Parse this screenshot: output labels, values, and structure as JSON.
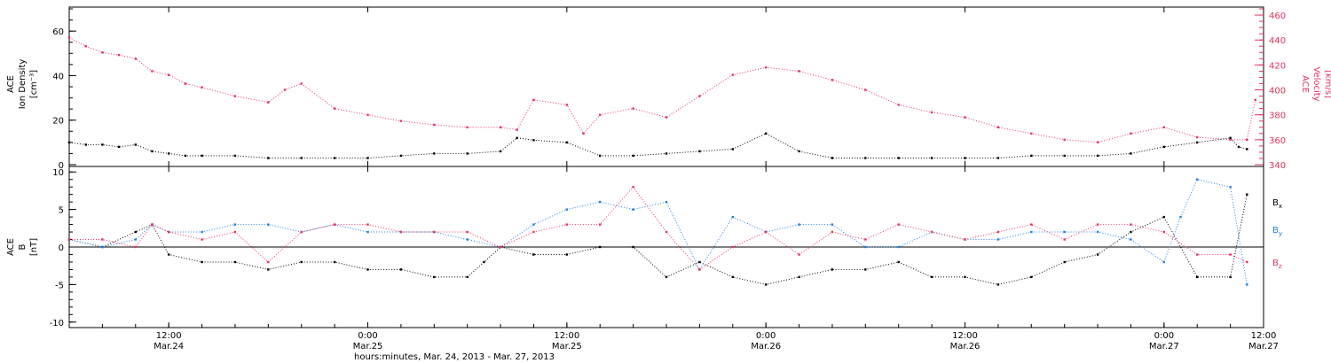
{
  "colors": {
    "black": "#000000",
    "velocity": "#e8315f",
    "by": "#1e7fe0",
    "bz": "#e8315f"
  },
  "x_axis": {
    "range_hours": [
      0,
      72
    ],
    "ticks": [
      {
        "h": 6,
        "label": "12:00",
        "date": "Mar.24"
      },
      {
        "h": 18,
        "label": "0:00",
        "date": "Mar.25"
      },
      {
        "h": 30,
        "label": "12:00",
        "date": "Mar.25"
      },
      {
        "h": 42,
        "label": "0:00",
        "date": "Mar.26"
      },
      {
        "h": 54,
        "label": "12:00",
        "date": "Mar.26"
      },
      {
        "h": 66,
        "label": "0:00",
        "date": "Mar.27"
      },
      {
        "h": 78,
        "label": "12:00",
        "date": "Mar.27"
      }
    ],
    "title": "hours:minutes, Mar. 24, 2013 - Mar. 27, 2013"
  },
  "chart_data": [
    {
      "type": "scatter",
      "panel": "top",
      "ylabel_left": [
        "ACE",
        "Ion Density",
        "[cm⁻³]"
      ],
      "ylabel_right": [
        "ACE",
        "Velocity",
        "[km/s]"
      ],
      "ylim_left": [
        0,
        70
      ],
      "ylim_right": [
        340,
        465
      ],
      "yticks_left": [
        0,
        20,
        40,
        60
      ],
      "yticks_right": [
        340,
        360,
        380,
        400,
        420,
        440,
        460
      ],
      "series": [
        {
          "axis": "left",
          "color": "black",
          "x": [
            0,
            1,
            2,
            3,
            4,
            5,
            6,
            7,
            8,
            10,
            12,
            14,
            16,
            18,
            20,
            22,
            24,
            26,
            27,
            28,
            30,
            32,
            34,
            36,
            38,
            40,
            42,
            44,
            46,
            48,
            50,
            52,
            54,
            56,
            58,
            60,
            62,
            64,
            66,
            68,
            70,
            70.5,
            71
          ],
          "y": [
            10,
            9,
            9,
            8,
            9,
            6,
            5,
            4,
            4,
            4,
            3,
            3,
            3,
            3,
            4,
            5,
            5,
            6,
            12,
            11,
            10,
            4,
            4,
            5,
            6,
            7,
            14,
            6,
            3,
            3,
            3,
            3,
            3,
            3,
            4,
            4,
            4,
            5,
            8,
            10,
            12,
            8,
            7
          ]
        },
        {
          "axis": "right",
          "color": "velocity",
          "x": [
            0,
            1,
            2,
            3,
            4,
            5,
            6,
            7,
            8,
            10,
            12,
            13,
            14,
            16,
            18,
            20,
            22,
            24,
            26,
            27,
            28,
            30,
            31,
            32,
            34,
            36,
            38,
            40,
            42,
            44,
            46,
            48,
            50,
            52,
            54,
            56,
            58,
            60,
            62,
            64,
            66,
            68,
            70,
            71,
            71.5
          ],
          "y": [
            442,
            435,
            430,
            428,
            425,
            415,
            412,
            405,
            402,
            395,
            390,
            400,
            405,
            385,
            380,
            375,
            372,
            370,
            370,
            368,
            392,
            388,
            365,
            380,
            385,
            378,
            395,
            412,
            418,
            415,
            408,
            400,
            388,
            382,
            378,
            370,
            365,
            360,
            358,
            365,
            370,
            362,
            360,
            360,
            392
          ]
        }
      ]
    },
    {
      "type": "scatter",
      "panel": "bottom",
      "ylabel_left": [
        "ACE",
        "B",
        "[nT]"
      ],
      "ylim": [
        -10.5,
        10.5
      ],
      "yticks": [
        -10,
        -5,
        0,
        5,
        10
      ],
      "legend": [
        "Bx",
        "By",
        "Bz"
      ],
      "series": [
        {
          "name": "Bx",
          "color": "black",
          "x": [
            0,
            2,
            4,
            5,
            6,
            8,
            10,
            12,
            14,
            16,
            18,
            20,
            22,
            24,
            25,
            26,
            28,
            30,
            32,
            34,
            36,
            38,
            40,
            42,
            44,
            46,
            48,
            50,
            52,
            54,
            56,
            58,
            60,
            62,
            64,
            66,
            68,
            70,
            71
          ],
          "y": [
            1,
            0,
            2,
            3,
            -1,
            -2,
            -2,
            -3,
            -2,
            -2,
            -3,
            -3,
            -4,
            -4,
            -2,
            0,
            -1,
            -1,
            0,
            0,
            -4,
            -2,
            -4,
            -5,
            -4,
            -3,
            -3,
            -2,
            -4,
            -4,
            -5,
            -4,
            -2,
            -1,
            2,
            4,
            -4,
            -4,
            7
          ]
        },
        {
          "name": "By",
          "color": "by",
          "x": [
            0,
            2,
            4,
            5,
            6,
            8,
            10,
            12,
            14,
            16,
            18,
            20,
            22,
            24,
            26,
            28,
            30,
            32,
            34,
            36,
            38,
            40,
            42,
            44,
            46,
            48,
            50,
            52,
            54,
            56,
            58,
            60,
            62,
            64,
            66,
            67,
            68,
            70,
            71
          ],
          "y": [
            1,
            0,
            1,
            3,
            2,
            2,
            3,
            3,
            2,
            3,
            2,
            2,
            2,
            1,
            0,
            3,
            5,
            6,
            5,
            6,
            -3,
            4,
            2,
            3,
            3,
            0,
            0,
            2,
            1,
            1,
            2,
            2,
            2,
            1,
            -2,
            4,
            9,
            8,
            -5
          ]
        },
        {
          "name": "Bz",
          "color": "bz",
          "x": [
            0,
            2,
            4,
            5,
            6,
            8,
            10,
            12,
            14,
            16,
            18,
            20,
            22,
            24,
            26,
            28,
            30,
            32,
            34,
            36,
            38,
            40,
            42,
            44,
            46,
            48,
            50,
            52,
            54,
            56,
            58,
            60,
            62,
            64,
            66,
            68,
            70,
            71
          ],
          "y": [
            1,
            1,
            0,
            3,
            2,
            1,
            2,
            -2,
            2,
            3,
            3,
            2,
            2,
            2,
            0,
            2,
            3,
            3,
            8,
            2,
            -3,
            0,
            2,
            -1,
            2,
            1,
            3,
            2,
            1,
            2,
            3,
            1,
            3,
            3,
            2,
            -1,
            -1,
            -2
          ]
        }
      ]
    }
  ]
}
